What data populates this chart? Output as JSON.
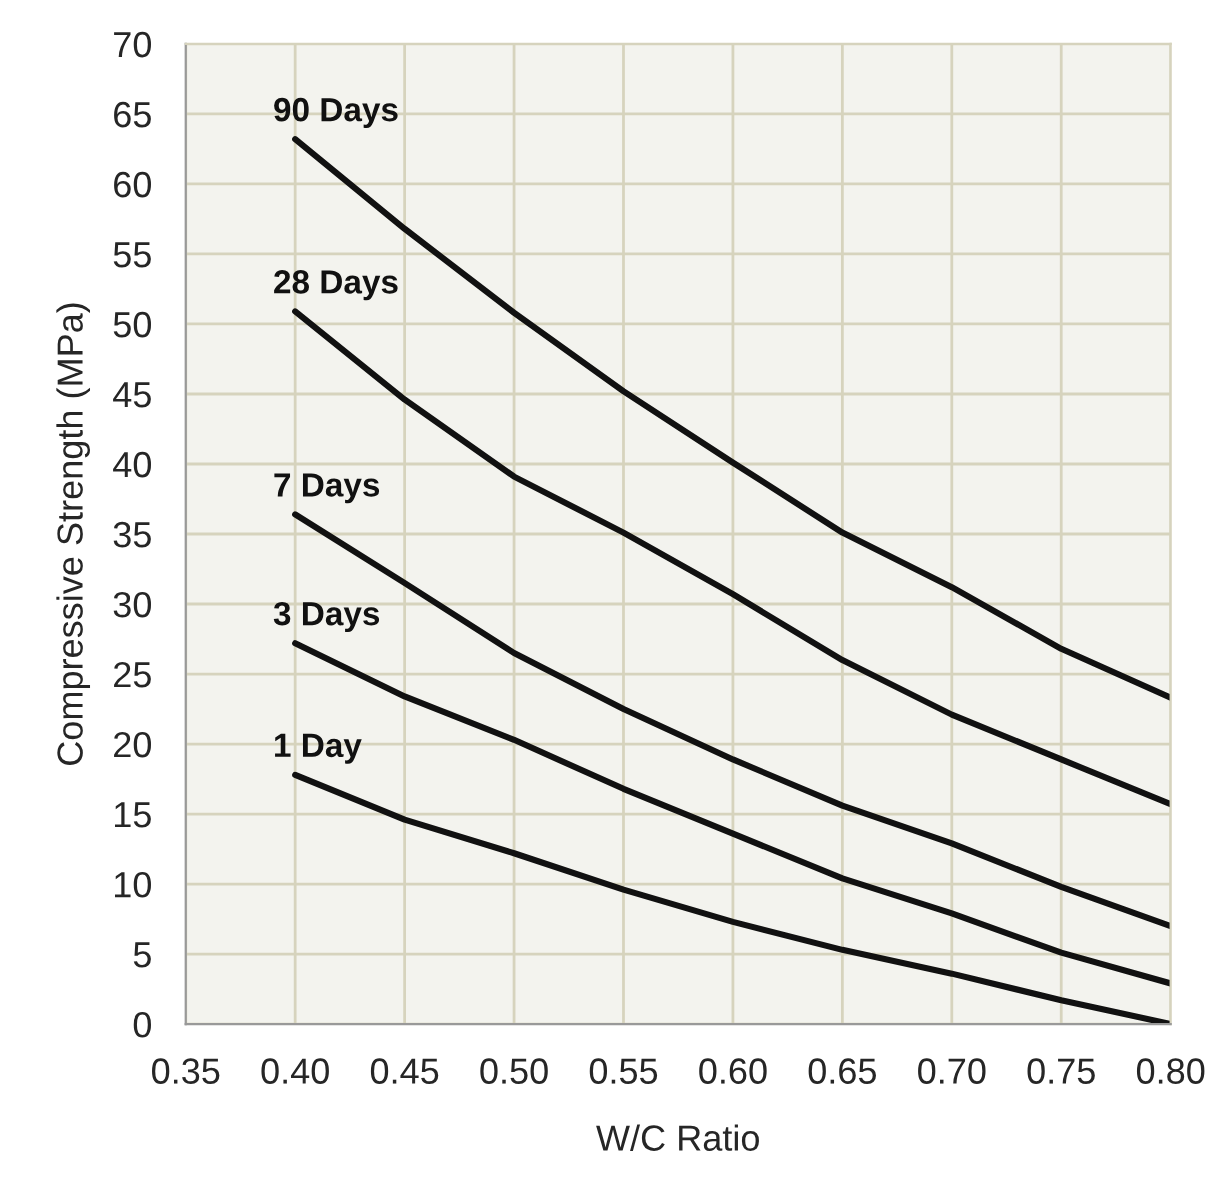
{
  "chart_data": {
    "type": "line",
    "xlabel": "W/C Ratio",
    "ylabel": "Compressive Strength (MPa)",
    "x": [
      0.4,
      0.45,
      0.5,
      0.55,
      0.6,
      0.65,
      0.7,
      0.75,
      0.8
    ],
    "series": [
      {
        "name": "90 Days",
        "color": "#111111",
        "values": [
          63.2,
          56.8,
          50.8,
          45.2,
          40.1,
          35.1,
          31.2,
          26.8,
          23.3
        ]
      },
      {
        "name": "28 Days",
        "color": "#111111",
        "values": [
          50.9,
          44.6,
          39.1,
          35.1,
          30.7,
          26.0,
          22.1,
          18.9,
          15.7
        ]
      },
      {
        "name": "7 Days",
        "color": "#111111",
        "values": [
          36.4,
          31.5,
          26.5,
          22.5,
          18.9,
          15.6,
          12.9,
          9.8,
          7.0
        ]
      },
      {
        "name": "3 Days",
        "color": "#111111",
        "values": [
          27.2,
          23.4,
          20.3,
          16.8,
          13.6,
          10.4,
          7.9,
          5.1,
          2.9
        ]
      },
      {
        "name": "1 Day",
        "color": "#111111",
        "values": [
          17.8,
          14.6,
          12.2,
          9.6,
          7.3,
          5.3,
          3.6,
          1.7,
          0.0
        ]
      }
    ],
    "xlim": [
      0.35,
      0.8
    ],
    "xticks": [
      {
        "value": 0.35,
        "label": "0.35"
      },
      {
        "value": 0.4,
        "label": "0.40"
      },
      {
        "value": 0.45,
        "label": "0.45"
      },
      {
        "value": 0.5,
        "label": "0.50"
      },
      {
        "value": 0.55,
        "label": "0.55"
      },
      {
        "value": 0.6,
        "label": "0.60"
      },
      {
        "value": 0.65,
        "label": "0.65"
      },
      {
        "value": 0.7,
        "label": "0.70"
      },
      {
        "value": 0.75,
        "label": "0.75"
      },
      {
        "value": 0.8,
        "label": "0.80"
      }
    ],
    "ylim": [
      0,
      70
    ],
    "yticks": [
      0,
      5,
      10,
      15,
      20,
      25,
      30,
      35,
      40,
      45,
      50,
      55,
      60,
      65,
      70
    ],
    "grid": true,
    "legend": false,
    "marker": "none",
    "line_style": "solid"
  }
}
